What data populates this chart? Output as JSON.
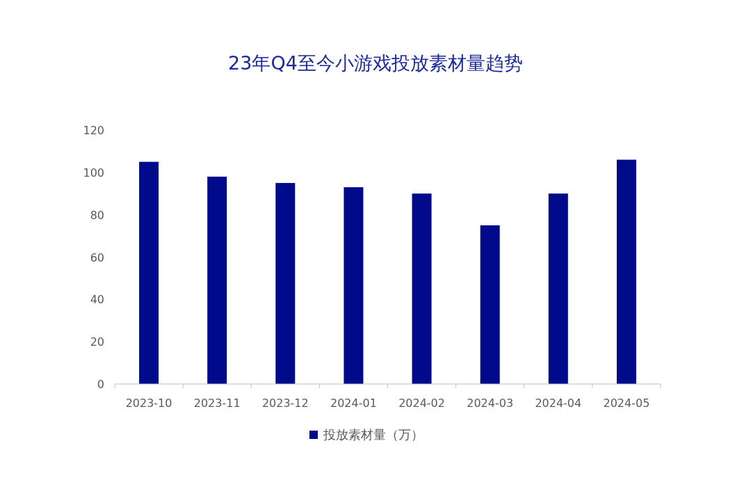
{
  "chart_data": {
    "type": "bar",
    "title": "23年Q4至今小游戏投放素材量趋势",
    "categories": [
      "2023-10",
      "2023-11",
      "2023-12",
      "2024-01",
      "2024-02",
      "2024-03",
      "2024-04",
      "2024-05"
    ],
    "series": [
      {
        "name": "投放素材量（万）",
        "color": "#000b8c",
        "values": [
          105,
          98,
          95,
          93,
          90,
          75,
          90,
          106
        ]
      }
    ],
    "ylim": [
      0,
      120
    ],
    "yticks": [
      0,
      20,
      40,
      60,
      80,
      100,
      120
    ],
    "legend": "bottom"
  }
}
